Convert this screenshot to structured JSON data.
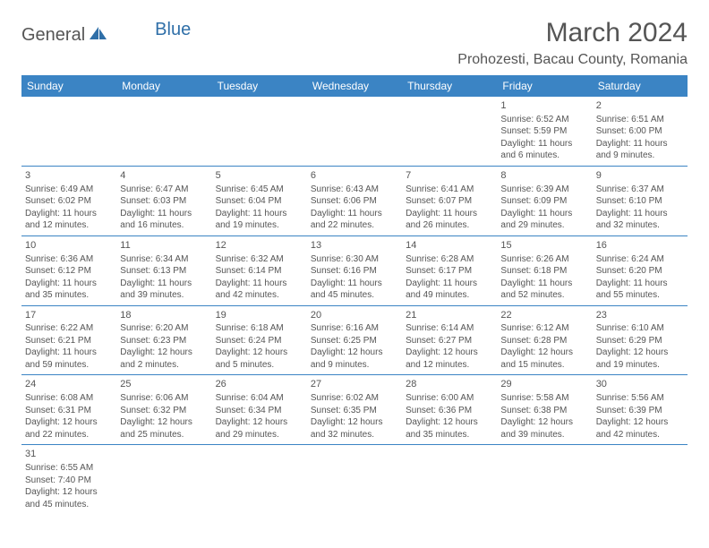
{
  "logo": {
    "part1": "General",
    "part2": "Blue"
  },
  "title": "March 2024",
  "location": "Prohozesti, Bacau County, Romania",
  "colors": {
    "header_bg": "#3b84c4",
    "header_text": "#ffffff",
    "border": "#3b84c4",
    "text": "#555555",
    "logo_blue": "#2f6fa8"
  },
  "weekdays": [
    "Sunday",
    "Monday",
    "Tuesday",
    "Wednesday",
    "Thursday",
    "Friday",
    "Saturday"
  ],
  "weeks": [
    [
      null,
      null,
      null,
      null,
      null,
      {
        "n": "1",
        "sr": "Sunrise: 6:52 AM",
        "ss": "Sunset: 5:59 PM",
        "dl": "Daylight: 11 hours and 6 minutes."
      },
      {
        "n": "2",
        "sr": "Sunrise: 6:51 AM",
        "ss": "Sunset: 6:00 PM",
        "dl": "Daylight: 11 hours and 9 minutes."
      }
    ],
    [
      {
        "n": "3",
        "sr": "Sunrise: 6:49 AM",
        "ss": "Sunset: 6:02 PM",
        "dl": "Daylight: 11 hours and 12 minutes."
      },
      {
        "n": "4",
        "sr": "Sunrise: 6:47 AM",
        "ss": "Sunset: 6:03 PM",
        "dl": "Daylight: 11 hours and 16 minutes."
      },
      {
        "n": "5",
        "sr": "Sunrise: 6:45 AM",
        "ss": "Sunset: 6:04 PM",
        "dl": "Daylight: 11 hours and 19 minutes."
      },
      {
        "n": "6",
        "sr": "Sunrise: 6:43 AM",
        "ss": "Sunset: 6:06 PM",
        "dl": "Daylight: 11 hours and 22 minutes."
      },
      {
        "n": "7",
        "sr": "Sunrise: 6:41 AM",
        "ss": "Sunset: 6:07 PM",
        "dl": "Daylight: 11 hours and 26 minutes."
      },
      {
        "n": "8",
        "sr": "Sunrise: 6:39 AM",
        "ss": "Sunset: 6:09 PM",
        "dl": "Daylight: 11 hours and 29 minutes."
      },
      {
        "n": "9",
        "sr": "Sunrise: 6:37 AM",
        "ss": "Sunset: 6:10 PM",
        "dl": "Daylight: 11 hours and 32 minutes."
      }
    ],
    [
      {
        "n": "10",
        "sr": "Sunrise: 6:36 AM",
        "ss": "Sunset: 6:12 PM",
        "dl": "Daylight: 11 hours and 35 minutes."
      },
      {
        "n": "11",
        "sr": "Sunrise: 6:34 AM",
        "ss": "Sunset: 6:13 PM",
        "dl": "Daylight: 11 hours and 39 minutes."
      },
      {
        "n": "12",
        "sr": "Sunrise: 6:32 AM",
        "ss": "Sunset: 6:14 PM",
        "dl": "Daylight: 11 hours and 42 minutes."
      },
      {
        "n": "13",
        "sr": "Sunrise: 6:30 AM",
        "ss": "Sunset: 6:16 PM",
        "dl": "Daylight: 11 hours and 45 minutes."
      },
      {
        "n": "14",
        "sr": "Sunrise: 6:28 AM",
        "ss": "Sunset: 6:17 PM",
        "dl": "Daylight: 11 hours and 49 minutes."
      },
      {
        "n": "15",
        "sr": "Sunrise: 6:26 AM",
        "ss": "Sunset: 6:18 PM",
        "dl": "Daylight: 11 hours and 52 minutes."
      },
      {
        "n": "16",
        "sr": "Sunrise: 6:24 AM",
        "ss": "Sunset: 6:20 PM",
        "dl": "Daylight: 11 hours and 55 minutes."
      }
    ],
    [
      {
        "n": "17",
        "sr": "Sunrise: 6:22 AM",
        "ss": "Sunset: 6:21 PM",
        "dl": "Daylight: 11 hours and 59 minutes."
      },
      {
        "n": "18",
        "sr": "Sunrise: 6:20 AM",
        "ss": "Sunset: 6:23 PM",
        "dl": "Daylight: 12 hours and 2 minutes."
      },
      {
        "n": "19",
        "sr": "Sunrise: 6:18 AM",
        "ss": "Sunset: 6:24 PM",
        "dl": "Daylight: 12 hours and 5 minutes."
      },
      {
        "n": "20",
        "sr": "Sunrise: 6:16 AM",
        "ss": "Sunset: 6:25 PM",
        "dl": "Daylight: 12 hours and 9 minutes."
      },
      {
        "n": "21",
        "sr": "Sunrise: 6:14 AM",
        "ss": "Sunset: 6:27 PM",
        "dl": "Daylight: 12 hours and 12 minutes."
      },
      {
        "n": "22",
        "sr": "Sunrise: 6:12 AM",
        "ss": "Sunset: 6:28 PM",
        "dl": "Daylight: 12 hours and 15 minutes."
      },
      {
        "n": "23",
        "sr": "Sunrise: 6:10 AM",
        "ss": "Sunset: 6:29 PM",
        "dl": "Daylight: 12 hours and 19 minutes."
      }
    ],
    [
      {
        "n": "24",
        "sr": "Sunrise: 6:08 AM",
        "ss": "Sunset: 6:31 PM",
        "dl": "Daylight: 12 hours and 22 minutes."
      },
      {
        "n": "25",
        "sr": "Sunrise: 6:06 AM",
        "ss": "Sunset: 6:32 PM",
        "dl": "Daylight: 12 hours and 25 minutes."
      },
      {
        "n": "26",
        "sr": "Sunrise: 6:04 AM",
        "ss": "Sunset: 6:34 PM",
        "dl": "Daylight: 12 hours and 29 minutes."
      },
      {
        "n": "27",
        "sr": "Sunrise: 6:02 AM",
        "ss": "Sunset: 6:35 PM",
        "dl": "Daylight: 12 hours and 32 minutes."
      },
      {
        "n": "28",
        "sr": "Sunrise: 6:00 AM",
        "ss": "Sunset: 6:36 PM",
        "dl": "Daylight: 12 hours and 35 minutes."
      },
      {
        "n": "29",
        "sr": "Sunrise: 5:58 AM",
        "ss": "Sunset: 6:38 PM",
        "dl": "Daylight: 12 hours and 39 minutes."
      },
      {
        "n": "30",
        "sr": "Sunrise: 5:56 AM",
        "ss": "Sunset: 6:39 PM",
        "dl": "Daylight: 12 hours and 42 minutes."
      }
    ],
    [
      {
        "n": "31",
        "sr": "Sunrise: 6:55 AM",
        "ss": "Sunset: 7:40 PM",
        "dl": "Daylight: 12 hours and 45 minutes."
      },
      null,
      null,
      null,
      null,
      null,
      null
    ]
  ]
}
